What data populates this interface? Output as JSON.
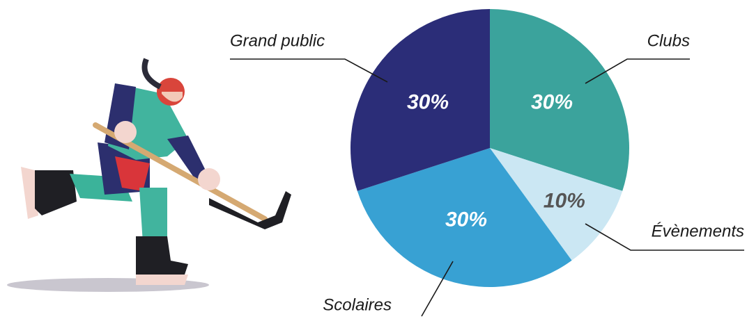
{
  "chart_data": {
    "type": "pie",
    "categories": [
      "Clubs",
      "Évènements",
      "Scolaires",
      "Grand public"
    ],
    "values": [
      30,
      10,
      30,
      30
    ],
    "value_labels": [
      "30%",
      "10%",
      "30%",
      "30%"
    ],
    "colors": [
      "#3ba39c",
      "#cbe7f3",
      "#38a1d3",
      "#2b2d78"
    ],
    "value_label_colors": [
      "#ffffff",
      "#555555",
      "#ffffff",
      "#ffffff"
    ]
  }
}
